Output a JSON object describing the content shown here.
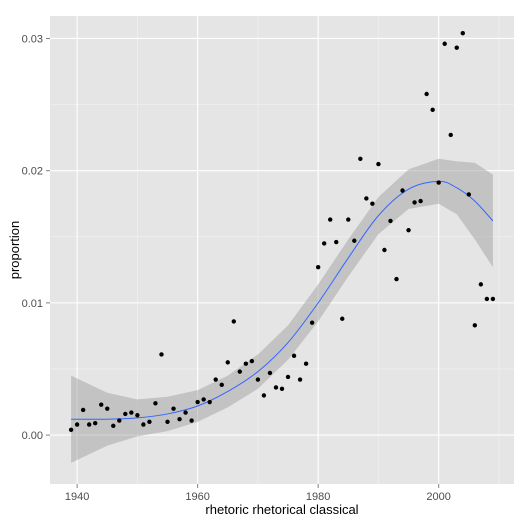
{
  "chart_data": {
    "type": "scatter",
    "title": "",
    "xlabel": "rhetoric rhetorical classical",
    "ylabel": "proportion",
    "xlim": [
      1935.5,
      2012.5
    ],
    "ylim": [
      -0.0037,
      0.0317
    ],
    "x_ticks": [
      1940,
      1960,
      1980,
      2000
    ],
    "y_ticks": [
      0.0,
      0.01,
      0.02,
      0.03
    ],
    "x_tick_labels": [
      "1940",
      "1960",
      "1980",
      "2000"
    ],
    "y_tick_labels": [
      "0.00",
      "0.01",
      "0.02",
      "0.03"
    ],
    "grid": true,
    "colors": {
      "panel": "#e5e5e5",
      "grid_major": "#ffffff",
      "grid_minor": "#f2f2f2",
      "points": "#000000",
      "smooth_line": "#3366ff",
      "ribbon": "#999999"
    },
    "points": [
      [
        1939,
        0.0004
      ],
      [
        1940,
        0.0008
      ],
      [
        1941,
        0.0019
      ],
      [
        1942,
        0.0008
      ],
      [
        1943,
        0.0009
      ],
      [
        1944,
        0.0023
      ],
      [
        1945,
        0.002
      ],
      [
        1946,
        0.0007
      ],
      [
        1947,
        0.0011
      ],
      [
        1948,
        0.0016
      ],
      [
        1949,
        0.0017
      ],
      [
        1950,
        0.0015
      ],
      [
        1951,
        0.0008
      ],
      [
        1952,
        0.001
      ],
      [
        1953,
        0.0024
      ],
      [
        1954,
        0.0061
      ],
      [
        1955,
        0.001
      ],
      [
        1956,
        0.002
      ],
      [
        1957,
        0.0012
      ],
      [
        1958,
        0.0017
      ],
      [
        1959,
        0.0011
      ],
      [
        1960,
        0.0025
      ],
      [
        1961,
        0.0027
      ],
      [
        1962,
        0.0025
      ],
      [
        1963,
        0.0042
      ],
      [
        1964,
        0.0038
      ],
      [
        1965,
        0.0055
      ],
      [
        1966,
        0.0086
      ],
      [
        1967,
        0.0048
      ],
      [
        1968,
        0.0054
      ],
      [
        1969,
        0.0056
      ],
      [
        1970,
        0.0042
      ],
      [
        1971,
        0.003
      ],
      [
        1972,
        0.0047
      ],
      [
        1973,
        0.0036
      ],
      [
        1974,
        0.0035
      ],
      [
        1975,
        0.0044
      ],
      [
        1976,
        0.006
      ],
      [
        1977,
        0.0042
      ],
      [
        1978,
        0.0054
      ],
      [
        1979,
        0.0085
      ],
      [
        1980,
        0.0127
      ],
      [
        1981,
        0.0145
      ],
      [
        1982,
        0.0163
      ],
      [
        1983,
        0.0146
      ],
      [
        1984,
        0.0088
      ],
      [
        1985,
        0.0163
      ],
      [
        1986,
        0.0147
      ],
      [
        1987,
        0.0209
      ],
      [
        1988,
        0.0179
      ],
      [
        1989,
        0.0175
      ],
      [
        1990,
        0.0205
      ],
      [
        1991,
        0.014
      ],
      [
        1992,
        0.0162
      ],
      [
        1993,
        0.0118
      ],
      [
        1994,
        0.0185
      ],
      [
        1995,
        0.0155
      ],
      [
        1996,
        0.0176
      ],
      [
        1997,
        0.0177
      ],
      [
        1998,
        0.0258
      ],
      [
        1999,
        0.0246
      ],
      [
        2000,
        0.0191
      ],
      [
        2001,
        0.0296
      ],
      [
        2002,
        0.0227
      ],
      [
        2003,
        0.0293
      ],
      [
        2004,
        0.0304
      ],
      [
        2005,
        0.0182
      ],
      [
        2006,
        0.0083
      ],
      [
        2007,
        0.0114
      ],
      [
        2008,
        0.0103
      ],
      [
        2009,
        0.0103
      ]
    ],
    "smooth_fit": [
      [
        1939,
        0.0012,
        -0.0021,
        0.0045
      ],
      [
        1945,
        0.0012,
        -0.0008,
        0.0032
      ],
      [
        1950,
        0.0013,
        -0.0001,
        0.0027
      ],
      [
        1955,
        0.0016,
        0.0003,
        0.0029
      ],
      [
        1960,
        0.0022,
        0.001,
        0.0034
      ],
      [
        1965,
        0.0033,
        0.0021,
        0.0045
      ],
      [
        1970,
        0.0048,
        0.0035,
        0.0061
      ],
      [
        1975,
        0.007,
        0.0057,
        0.0083
      ],
      [
        1980,
        0.01,
        0.0086,
        0.0114
      ],
      [
        1985,
        0.0134,
        0.012,
        0.0148
      ],
      [
        1990,
        0.0166,
        0.0152,
        0.018
      ],
      [
        1995,
        0.0186,
        0.0171,
        0.0201
      ],
      [
        2000,
        0.0192,
        0.0175,
        0.0209
      ],
      [
        2003,
        0.0187,
        0.0167,
        0.0207
      ],
      [
        2006,
        0.0177,
        0.0148,
        0.0206
      ],
      [
        2009,
        0.0162,
        0.0127,
        0.0197
      ]
    ]
  }
}
